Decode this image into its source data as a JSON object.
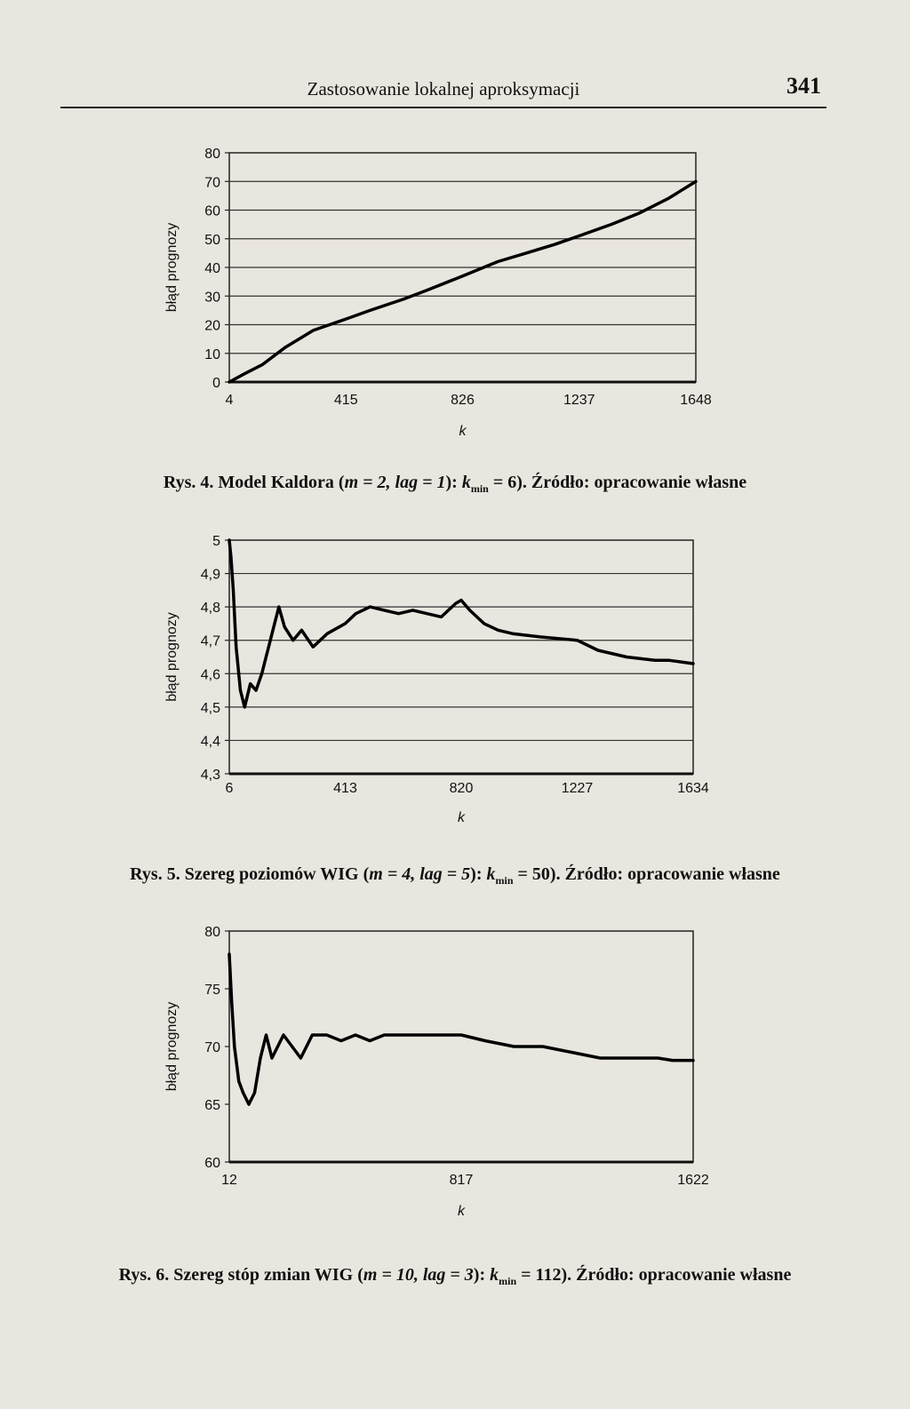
{
  "page": {
    "running_title": "Zastosowanie lokalnej aproksymacji",
    "page_number": "341"
  },
  "figures": [
    {
      "caption": {
        "prefix": "Rys. 4. Model Kaldora (",
        "params": "m = 2, lag = 1",
        "kmin_label": "k",
        "kmin_sub": "min",
        "kmin_value": " = 6). Źródło: opracowanie własne"
      }
    },
    {
      "caption": {
        "prefix": "Rys. 5. Szereg poziomów WIG (",
        "params": "m = 4, lag = 5",
        "kmin_label": "k",
        "kmin_sub": "min",
        "kmin_value": " = 50). Źródło: opracowanie własne"
      }
    },
    {
      "caption": {
        "prefix": "Rys. 6. Szereg stóp zmian WIG (",
        "params": "m = 10, lag = 3",
        "kmin_label": "k",
        "kmin_sub": "min",
        "kmin_value": " = 112). Źródło: opracowanie własne"
      }
    }
  ],
  "chart_data": [
    {
      "type": "line",
      "xlabel": "k",
      "ylabel": "błąd prognozy",
      "xticks": [
        "4",
        "415",
        "826",
        "1237",
        "1648"
      ],
      "xlim": [
        4,
        1648
      ],
      "ylim": [
        0,
        80
      ],
      "yticks": [
        "0",
        "10",
        "20",
        "30",
        "40",
        "50",
        "60",
        "70",
        "80"
      ],
      "grid": true,
      "series": [
        {
          "x": [
            4,
            60,
            120,
            200,
            300,
            415,
            500,
            620,
            700,
            826,
            950,
            1050,
            1150,
            1237,
            1350,
            1450,
            1550,
            1648
          ],
          "values": [
            0,
            3,
            6,
            12,
            18,
            22,
            25,
            29,
            32,
            37,
            42,
            45,
            48,
            51,
            55,
            59,
            64,
            70
          ]
        }
      ]
    },
    {
      "type": "line",
      "xlabel": "k",
      "ylabel": "błąd prognozy",
      "xticks": [
        "6",
        "413",
        "820",
        "1227",
        "1634"
      ],
      "xlim": [
        6,
        1634
      ],
      "ylim": [
        4.3,
        5.0
      ],
      "yticks": [
        "4,3",
        "4,4",
        "4,5",
        "4,6",
        "4,7",
        "4,8",
        "4,9",
        "5"
      ],
      "grid": true,
      "series": [
        {
          "x": [
            6,
            12,
            20,
            30,
            45,
            60,
            80,
            100,
            120,
            150,
            180,
            200,
            230,
            260,
            300,
            350,
            413,
            450,
            500,
            550,
            600,
            650,
            700,
            750,
            800,
            820,
            850,
            900,
            950,
            1000,
            1100,
            1227,
            1300,
            1400,
            1500,
            1550,
            1634
          ],
          "values": [
            5.0,
            4.95,
            4.85,
            4.68,
            4.55,
            4.5,
            4.57,
            4.55,
            4.6,
            4.7,
            4.8,
            4.74,
            4.7,
            4.73,
            4.68,
            4.72,
            4.75,
            4.78,
            4.8,
            4.79,
            4.78,
            4.79,
            4.78,
            4.77,
            4.81,
            4.82,
            4.79,
            4.75,
            4.73,
            4.72,
            4.71,
            4.7,
            4.67,
            4.65,
            4.64,
            4.64,
            4.63
          ]
        }
      ]
    },
    {
      "type": "line",
      "xlabel": "k",
      "ylabel": "błąd prognozy",
      "xticks": [
        "12",
        "817",
        "1622"
      ],
      "xlim": [
        12,
        1622
      ],
      "ylim": [
        60,
        80
      ],
      "yticks": [
        "60",
        "65",
        "70",
        "75",
        "80"
      ],
      "grid": false,
      "series": [
        {
          "x": [
            12,
            20,
            30,
            45,
            60,
            80,
            100,
            120,
            140,
            160,
            180,
            200,
            230,
            260,
            300,
            350,
            400,
            450,
            500,
            550,
            600,
            700,
            817,
            900,
            1000,
            1100,
            1200,
            1300,
            1400,
            1500,
            1550,
            1622
          ],
          "values": [
            78,
            74,
            70,
            67,
            66,
            65,
            66,
            69,
            71,
            69,
            70,
            71,
            70,
            69,
            71,
            71,
            70.5,
            71,
            70.5,
            71,
            71,
            71,
            71,
            70.5,
            70,
            70,
            69.5,
            69,
            69,
            69,
            68.8,
            68.8
          ]
        }
      ]
    }
  ]
}
